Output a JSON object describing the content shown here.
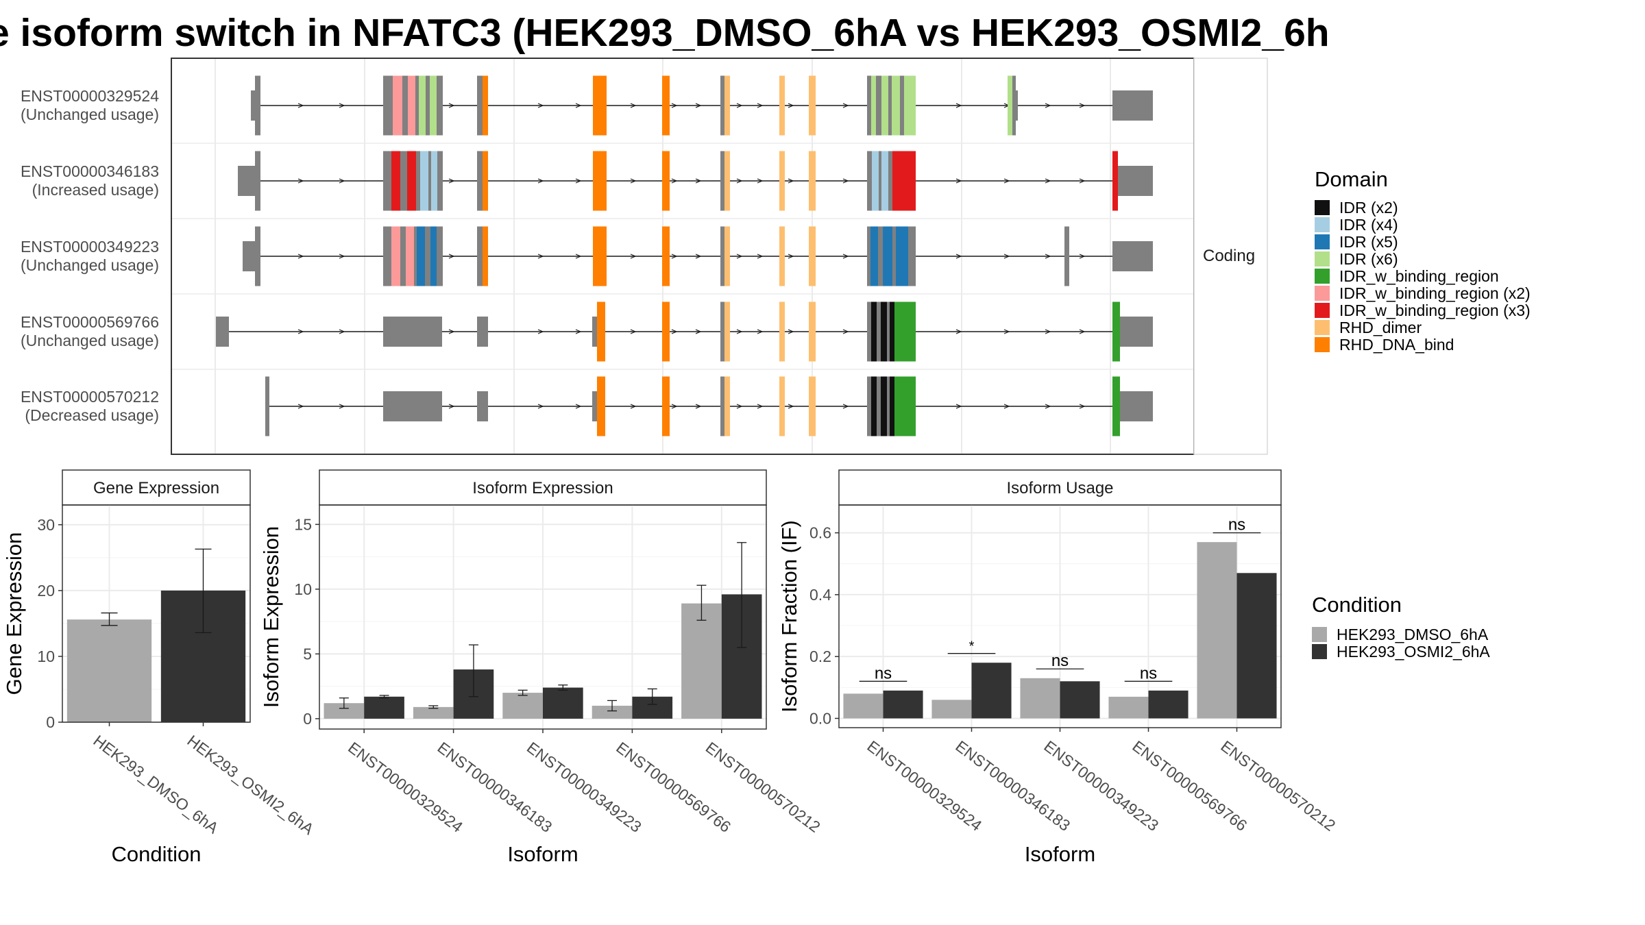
{
  "title": "e isoform switch in NFATC3 (HEK293_DMSO_6hA vs HEK293_OSMI2_6h",
  "structure": {
    "facet_label": "Coding",
    "isoforms": [
      {
        "id": "ENST00000329524",
        "usage": "(Unchanged usage)"
      },
      {
        "id": "ENST00000346183",
        "usage": "(Increased usage)"
      },
      {
        "id": "ENST00000349223",
        "usage": "(Unchanged usage)"
      },
      {
        "id": "ENST00000569766",
        "usage": "(Unchanged usage)"
      },
      {
        "id": "ENST00000570212",
        "usage": "(Decreased usage)"
      }
    ],
    "legend_title": "Domain",
    "domains": [
      {
        "label": "IDR (x2)",
        "color": "#111111"
      },
      {
        "label": "IDR (x4)",
        "color": "#a6cee3"
      },
      {
        "label": "IDR (x5)",
        "color": "#1f78b4"
      },
      {
        "label": "IDR (x6)",
        "color": "#b2df8a"
      },
      {
        "label": "IDR_w_binding_region",
        "color": "#33a02c"
      },
      {
        "label": "IDR_w_binding_region (x2)",
        "color": "#fb9a99"
      },
      {
        "label": "IDR_w_binding_region (x3)",
        "color": "#e31a1c"
      },
      {
        "label": "RHD_dimer",
        "color": "#fdbf6f"
      },
      {
        "label": "RHD_DNA_bind",
        "color": "#ff7f00"
      }
    ],
    "gene_color": "#808080"
  },
  "condition_legend": {
    "title": "Condition",
    "items": [
      {
        "label": "HEK293_DMSO_6hA",
        "color": "#a9a9a9"
      },
      {
        "label": "HEK293_OSMI2_6hA",
        "color": "#333333"
      }
    ]
  },
  "chart_data": [
    {
      "type": "bar",
      "panel": "Gene Expression",
      "xlabel": "Condition",
      "ylabel": "Gene Expression",
      "ylim": [
        0,
        33
      ],
      "yticks": [
        0,
        10,
        20,
        30
      ],
      "categories": [
        "HEK293_DMSO_6hA",
        "HEK293_OSMI2_6hA"
      ],
      "values": [
        15.6,
        20.0
      ],
      "err_low": [
        14.7,
        13.6
      ],
      "err_high": [
        16.6,
        26.3
      ],
      "colors": [
        "#a9a9a9",
        "#333333"
      ]
    },
    {
      "type": "bar",
      "panel": "Isoform Expression",
      "xlabel": "Isoform",
      "ylabel": "Isoform Expression",
      "ylim": [
        -0.8,
        16.5
      ],
      "yticks": [
        0,
        5,
        10,
        15
      ],
      "categories": [
        "ENST00000329524",
        "ENST00000346183",
        "ENST00000349223",
        "ENST00000569766",
        "ENST00000570212"
      ],
      "series": [
        {
          "name": "HEK293_DMSO_6hA",
          "color": "#a9a9a9",
          "values": [
            1.2,
            0.9,
            2.0,
            1.0,
            8.9
          ],
          "err_low": [
            0.8,
            0.8,
            1.8,
            0.6,
            7.6
          ],
          "err_high": [
            1.6,
            1.0,
            2.2,
            1.4,
            10.3
          ]
        },
        {
          "name": "HEK293_OSMI2_6hA",
          "color": "#333333",
          "values": [
            1.7,
            3.8,
            2.4,
            1.7,
            9.6
          ],
          "err_low": [
            1.6,
            1.7,
            2.2,
            1.1,
            5.5
          ],
          "err_high": [
            1.8,
            5.7,
            2.6,
            2.3,
            13.6
          ]
        }
      ]
    },
    {
      "type": "bar",
      "panel": "Isoform Usage",
      "xlabel": "Isoform",
      "ylabel": "Isoform Fraction (IF)",
      "ylim": [
        -0.03,
        0.69
      ],
      "yticks": [
        0.0,
        0.2,
        0.4,
        0.6
      ],
      "ytick_labels": [
        "0.0",
        "0.2",
        "0.4",
        "0.6"
      ],
      "categories": [
        "ENST00000329524",
        "ENST00000346183",
        "ENST00000349223",
        "ENST00000569766",
        "ENST00000570212"
      ],
      "series": [
        {
          "name": "HEK293_DMSO_6hA",
          "color": "#a9a9a9",
          "values": [
            0.08,
            0.06,
            0.13,
            0.07,
            0.57
          ]
        },
        {
          "name": "HEK293_OSMI2_6hA",
          "color": "#333333",
          "values": [
            0.09,
            0.18,
            0.12,
            0.09,
            0.47
          ]
        }
      ],
      "significance": [
        "ns",
        "*",
        "ns",
        "ns",
        "ns"
      ]
    }
  ]
}
